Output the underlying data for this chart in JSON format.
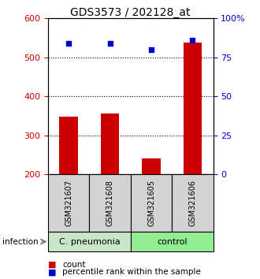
{
  "title": "GDS3573 / 202128_at",
  "samples": [
    "GSM321607",
    "GSM321608",
    "GSM321605",
    "GSM321606"
  ],
  "counts": [
    347,
    355,
    240,
    537
  ],
  "percentiles": [
    84,
    84,
    80,
    86
  ],
  "ylim_left": [
    200,
    600
  ],
  "ylim_right": [
    0,
    100
  ],
  "yticks_left": [
    200,
    300,
    400,
    500,
    600
  ],
  "yticks_right": [
    0,
    25,
    50,
    75,
    100
  ],
  "ytick_labels_right": [
    "0",
    "25",
    "50",
    "75",
    "100%"
  ],
  "bar_color": "#cc0000",
  "scatter_color": "#0000cc",
  "group1_label": "C. pneumonia",
  "group2_label": "control",
  "group1_color": "#c8e6c8",
  "group2_color": "#90ee90",
  "sample_box_color": "#d3d3d3",
  "infection_label": "infection",
  "legend_count": "count",
  "legend_pct": "percentile rank within the sample",
  "title_fontsize": 10,
  "tick_fontsize": 8,
  "sample_fontsize": 7,
  "group_fontsize": 8,
  "legend_fontsize": 7.5
}
